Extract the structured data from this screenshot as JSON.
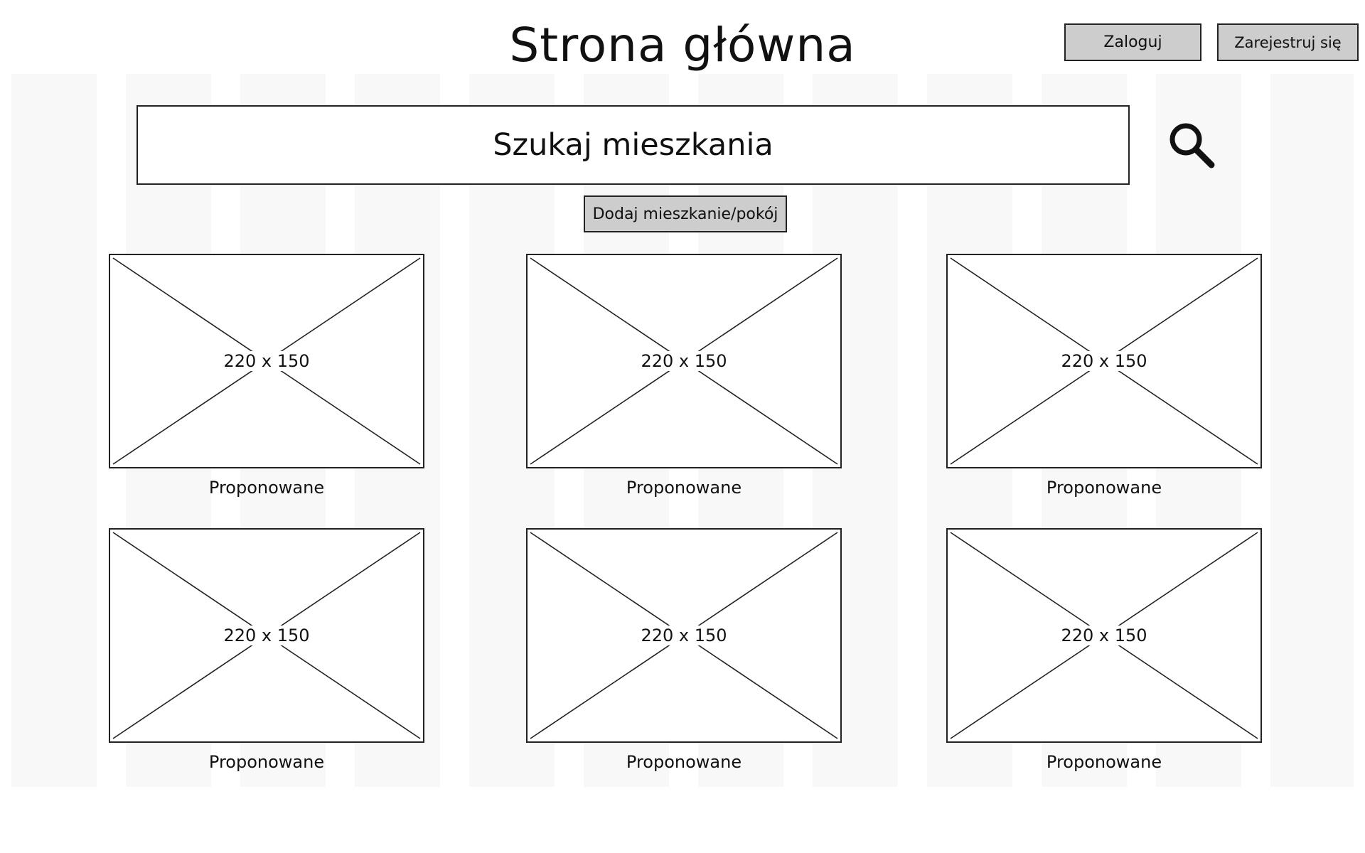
{
  "header": {
    "title": "Strona główna",
    "login_label": "Zaloguj",
    "register_label": "Zarejestruj się"
  },
  "search": {
    "text": "Szukaj mieszkania",
    "icon": "search-icon"
  },
  "actions": {
    "add_label": "Dodaj mieszkanie/pokój"
  },
  "listings": [
    {
      "image_size": "220 x 150",
      "caption": "Proponowane"
    },
    {
      "image_size": "220 x 150",
      "caption": "Proponowane"
    },
    {
      "image_size": "220 x 150",
      "caption": "Proponowane"
    },
    {
      "image_size": "220 x 150",
      "caption": "Proponowane"
    },
    {
      "image_size": "220 x 150",
      "caption": "Proponowane"
    },
    {
      "image_size": "220 x 150",
      "caption": "Proponowane"
    }
  ],
  "colors": {
    "button_bg": "#cdcdcd",
    "border": "#222222",
    "grid_stripe": "#f8f8f8"
  }
}
